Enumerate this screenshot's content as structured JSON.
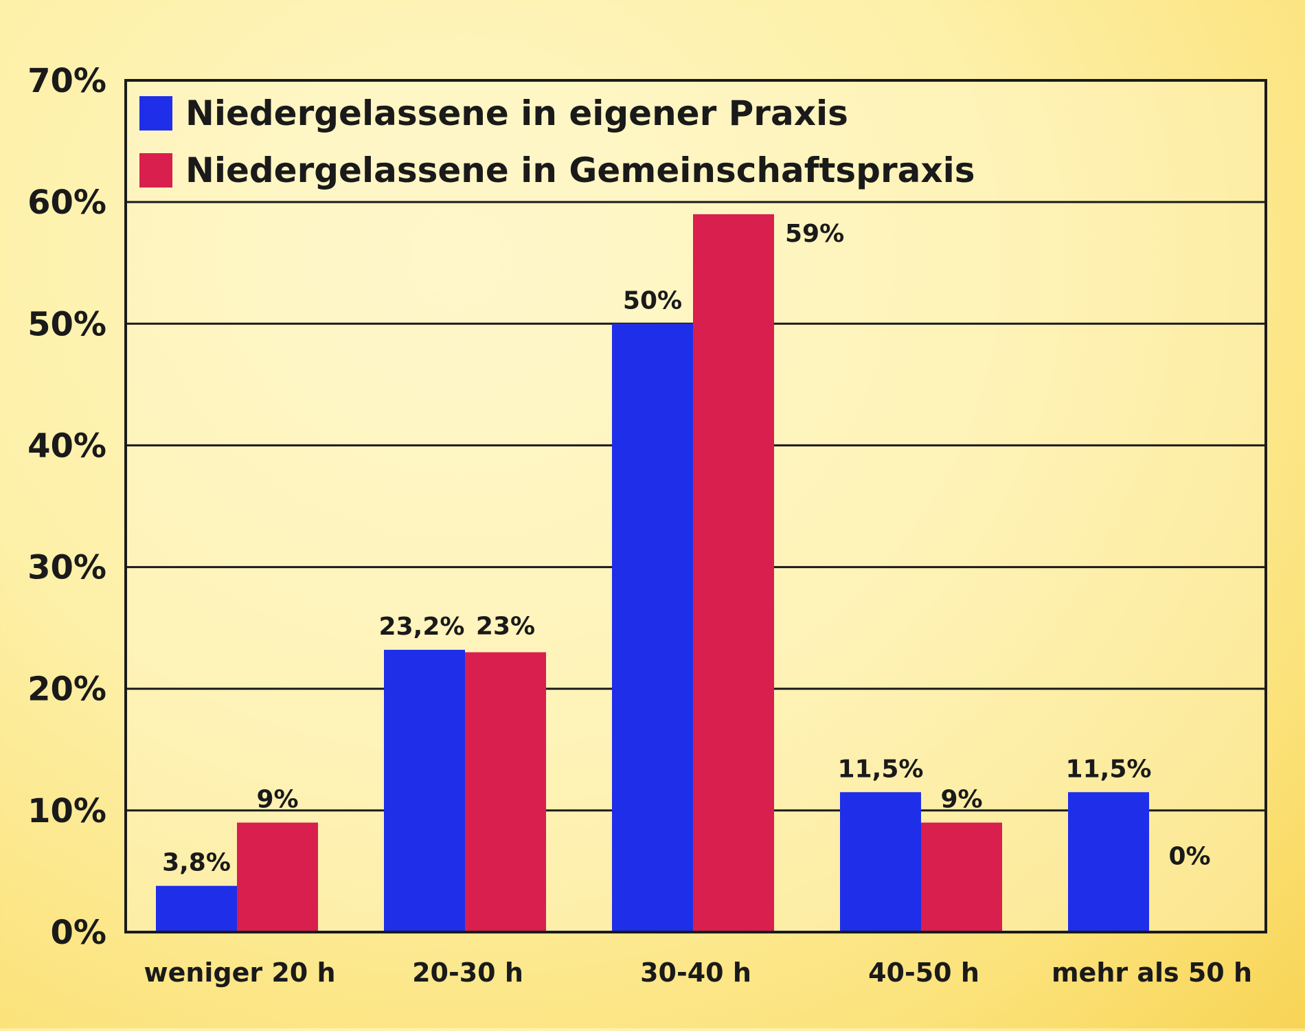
{
  "chart_data": {
    "type": "bar",
    "categories": [
      "weniger 20 h",
      "20-30 h",
      "30-40 h",
      "40-50 h",
      "mehr als 50 h"
    ],
    "series": [
      {
        "name": "Niedergelassene in eigener Praxis",
        "color": "#1f2ee8",
        "values": [
          3.8,
          23.2,
          50,
          11.5,
          11.5
        ],
        "labels": [
          "3,8%",
          "23,2%",
          "50%",
          "11,5%",
          "11,5%"
        ]
      },
      {
        "name": "Niedergelassene in Gemeinschaftspraxis",
        "color": "#d81f4e",
        "values": [
          9,
          23,
          59,
          9,
          0
        ],
        "labels": [
          "9%",
          "23%",
          "59%",
          "9%",
          "0%"
        ]
      }
    ],
    "y_ticks": [
      0,
      10,
      20,
      30,
      40,
      50,
      60,
      70
    ],
    "y_tick_labels": [
      "0%",
      "10%",
      "20%",
      "30%",
      "40%",
      "50%",
      "60%",
      "70%"
    ],
    "ylim": [
      0,
      70
    ],
    "grid": true,
    "legend_position": "top-left"
  }
}
